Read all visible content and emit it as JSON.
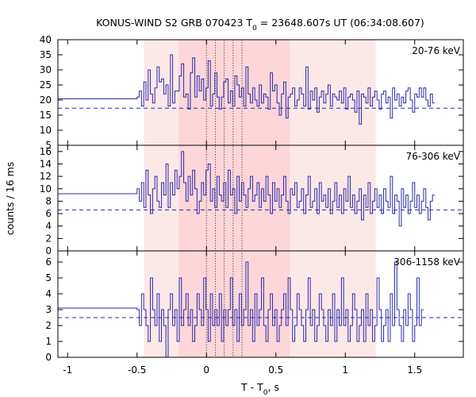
{
  "chart_data": {
    "type": "line",
    "title": "KONUS-WIND S2 GRB 070423 T",
    "title_sub": "0",
    "title_rest": " = 23648.607s UT (06:34:08.607)",
    "xlabel": "T - T",
    "xlabel_sub": "0",
    "xlabel_rest": ", s",
    "ylabel": "counts / 16 ms",
    "xlim": [
      -1.07,
      1.85
    ],
    "x_ticks": [
      -1,
      -0.5,
      0,
      0.5,
      1,
      1.5
    ],
    "x_tick_labels": [
      "-1",
      "-0.5",
      "0",
      "0.5",
      "1",
      "1.5"
    ],
    "line_color": "#2a2aaa",
    "shading": [
      {
        "x0": -0.45,
        "x1": 1.22,
        "color": "#fde8e8"
      },
      {
        "x0": -0.2,
        "x1": 0.6,
        "color": "#fcd6d9"
      }
    ],
    "vlines": [
      0,
      0.064,
      0.128,
      0.192,
      0.256
    ],
    "panels": [
      {
        "label": "20-76 keV",
        "ylim": [
          5,
          40
        ],
        "y_ticks": [
          5,
          10,
          15,
          20,
          25,
          30,
          35,
          40
        ],
        "background": 17.3,
        "pre_level": 20.4,
        "values": [
          21,
          23,
          18,
          26,
          20,
          30,
          22,
          19,
          24,
          31,
          26,
          27,
          22,
          25,
          18,
          35,
          19,
          23,
          23,
          28,
          32,
          21,
          22,
          17,
          29,
          34,
          21,
          28,
          23,
          27,
          20,
          24,
          33,
          18,
          22,
          29,
          21,
          17,
          21,
          26,
          27,
          19,
          23,
          18,
          28,
          25,
          21,
          24,
          18,
          31,
          22,
          19,
          24,
          20,
          18,
          25,
          19,
          22,
          21,
          17,
          29,
          23,
          25,
          19,
          15,
          22,
          26,
          14,
          21,
          22,
          24,
          18,
          20,
          24,
          22,
          18,
          31,
          17,
          23,
          20,
          24,
          16,
          21,
          23,
          19,
          22,
          25,
          18,
          22,
          21,
          20,
          23,
          19,
          24,
          17,
          21,
          22,
          20,
          16,
          23,
          12,
          22,
          21,
          19,
          24,
          18,
          21,
          23,
          20,
          17,
          22,
          23,
          19,
          21,
          14,
          24,
          20,
          22,
          18,
          21,
          19,
          23,
          24,
          20,
          16,
          22,
          21,
          24,
          21,
          24,
          20,
          18,
          22,
          19
        ]
      },
      {
        "label": "76-306 keV",
        "ylim": [
          0,
          17
        ],
        "y_ticks": [
          0,
          2,
          4,
          6,
          8,
          10,
          12,
          14,
          16
        ],
        "background": 6.6,
        "pre_level": 9.2,
        "values": [
          10,
          8,
          11,
          7,
          13,
          9,
          6,
          10,
          12,
          8,
          7,
          11,
          9,
          14,
          7,
          11,
          9,
          13,
          10,
          12,
          16,
          11,
          8,
          12,
          9,
          13,
          10,
          6,
          8,
          11,
          9,
          13,
          14,
          8,
          10,
          7,
          12,
          9,
          8,
          11,
          7,
          13,
          9,
          10,
          6,
          12,
          8,
          11,
          9,
          7,
          10,
          12,
          8,
          9,
          11,
          7,
          10,
          8,
          12,
          9,
          6,
          11,
          8,
          10,
          7,
          9,
          12,
          8,
          6,
          10,
          9,
          11,
          7,
          8,
          10,
          6,
          9,
          12,
          7,
          8,
          10,
          6,
          11,
          8,
          9,
          7,
          10,
          6,
          8,
          11,
          7,
          9,
          6,
          10,
          8,
          12,
          7,
          9,
          6,
          8,
          10,
          5,
          9,
          7,
          11,
          6,
          8,
          10,
          7,
          9,
          6,
          10,
          8,
          7,
          12,
          6,
          9,
          8,
          4,
          10,
          7,
          9,
          6,
          8,
          11,
          7,
          9,
          6,
          8,
          10,
          7,
          5,
          8,
          9
        ]
      },
      {
        "label": "306-1158 keV",
        "ylim": [
          0,
          6.7
        ],
        "y_ticks": [
          0,
          1,
          2,
          3,
          4,
          5,
          6
        ],
        "background": 2.5,
        "pre_level": 3.1,
        "values": [
          3,
          2,
          4,
          3,
          2,
          1,
          5,
          3,
          2,
          4,
          1,
          3,
          2,
          0,
          3,
          4,
          2,
          3,
          1,
          5,
          2,
          3,
          4,
          2,
          3,
          1,
          2,
          4,
          3,
          2,
          5,
          3,
          1,
          4,
          2,
          3,
          2,
          4,
          1,
          3,
          2,
          3,
          5,
          2,
          3,
          1,
          4,
          2,
          3,
          6,
          2,
          3,
          1,
          4,
          2,
          3,
          5,
          2,
          1,
          3,
          4,
          2,
          3,
          1,
          2,
          3,
          4,
          2,
          5,
          3,
          1,
          2,
          4,
          3,
          2,
          1,
          3,
          5,
          2,
          3,
          1,
          2,
          4,
          3,
          2,
          1,
          3,
          2,
          4,
          1,
          3,
          2,
          5,
          2,
          3,
          1,
          2,
          4,
          3,
          1,
          2,
          3,
          1,
          4,
          2,
          3,
          1,
          2,
          5,
          3,
          1,
          2,
          3,
          1,
          4,
          2,
          6,
          3,
          2,
          1,
          3,
          2,
          4,
          3,
          1,
          2,
          5,
          2,
          3
        ]
      }
    ]
  }
}
